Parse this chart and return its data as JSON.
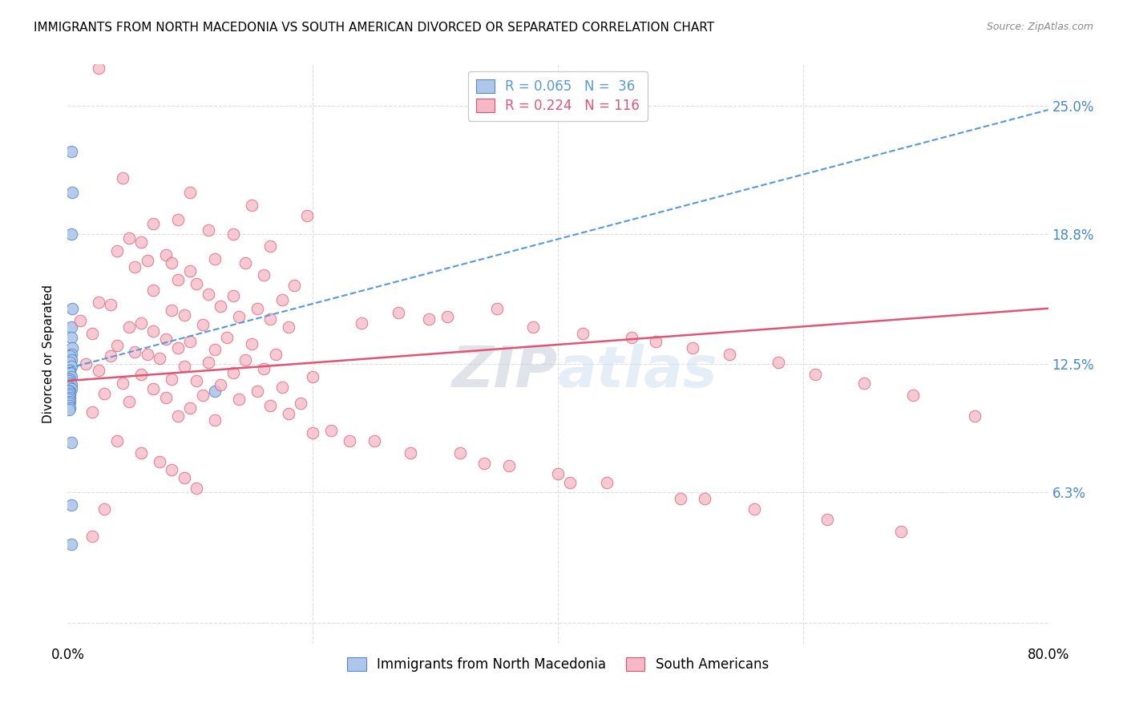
{
  "title": "IMMIGRANTS FROM NORTH MACEDONIA VS SOUTH AMERICAN DIVORCED OR SEPARATED CORRELATION CHART",
  "source": "Source: ZipAtlas.com",
  "ylabel": "Divorced or Separated",
  "legend_label_blue": "Immigrants from North Macedonia",
  "legend_label_pink": "South Americans",
  "blue_color": "#aec6e8",
  "pink_color": "#f5b8c4",
  "blue_edge_color": "#5588cc",
  "pink_edge_color": "#e05070",
  "blue_line_color": "#5599dd",
  "pink_line_color": "#e05575",
  "y_ticks": [
    0.0,
    0.063,
    0.125,
    0.188,
    0.25
  ],
  "y_tick_labels": [
    "",
    "6.3%",
    "12.5%",
    "18.8%",
    "25.0%"
  ],
  "xlim": [
    0.0,
    0.8
  ],
  "ylim": [
    -0.01,
    0.27
  ],
  "blue_scatter_x": [
    0.003,
    0.004,
    0.003,
    0.004,
    0.003,
    0.003,
    0.004,
    0.003,
    0.002,
    0.003,
    0.002,
    0.003,
    0.002,
    0.002,
    0.003,
    0.002,
    0.001,
    0.002,
    0.003,
    0.002,
    0.003,
    0.002,
    0.001,
    0.002,
    0.001,
    0.002,
    0.001,
    0.002,
    0.001,
    0.001,
    0.002,
    0.001,
    0.12,
    0.003,
    0.003,
    0.003
  ],
  "blue_scatter_y": [
    0.228,
    0.208,
    0.188,
    0.152,
    0.143,
    0.138,
    0.133,
    0.13,
    0.129,
    0.127,
    0.126,
    0.124,
    0.122,
    0.121,
    0.119,
    0.118,
    0.117,
    0.116,
    0.115,
    0.114,
    0.113,
    0.112,
    0.112,
    0.111,
    0.11,
    0.109,
    0.108,
    0.107,
    0.106,
    0.105,
    0.104,
    0.103,
    0.112,
    0.087,
    0.057,
    0.038
  ],
  "pink_scatter_x": [
    0.025,
    0.045,
    0.1,
    0.15,
    0.195,
    0.09,
    0.07,
    0.115,
    0.135,
    0.05,
    0.06,
    0.165,
    0.04,
    0.08,
    0.12,
    0.065,
    0.085,
    0.145,
    0.055,
    0.1,
    0.16,
    0.09,
    0.105,
    0.185,
    0.07,
    0.115,
    0.135,
    0.175,
    0.025,
    0.035,
    0.125,
    0.155,
    0.085,
    0.095,
    0.14,
    0.165,
    0.01,
    0.06,
    0.11,
    0.05,
    0.18,
    0.07,
    0.02,
    0.13,
    0.08,
    0.1,
    0.15,
    0.04,
    0.09,
    0.12,
    0.055,
    0.065,
    0.17,
    0.035,
    0.075,
    0.145,
    0.115,
    0.015,
    0.095,
    0.16,
    0.025,
    0.135,
    0.06,
    0.2,
    0.085,
    0.105,
    0.045,
    0.125,
    0.175,
    0.07,
    0.155,
    0.03,
    0.11,
    0.08,
    0.14,
    0.05,
    0.19,
    0.165,
    0.1,
    0.02,
    0.18,
    0.09,
    0.12,
    0.35,
    0.27,
    0.31,
    0.295,
    0.24,
    0.38,
    0.42,
    0.46,
    0.48,
    0.51,
    0.54,
    0.58,
    0.61,
    0.65,
    0.69,
    0.74,
    0.04,
    0.06,
    0.075,
    0.085,
    0.095,
    0.105,
    0.215,
    0.25,
    0.32,
    0.36,
    0.4,
    0.44,
    0.5,
    0.56,
    0.62,
    0.68,
    0.03,
    0.02,
    0.2,
    0.23,
    0.28,
    0.34,
    0.41,
    0.52
  ],
  "pink_scatter_y": [
    0.268,
    0.215,
    0.208,
    0.202,
    0.197,
    0.195,
    0.193,
    0.19,
    0.188,
    0.186,
    0.184,
    0.182,
    0.18,
    0.178,
    0.176,
    0.175,
    0.174,
    0.174,
    0.172,
    0.17,
    0.168,
    0.166,
    0.164,
    0.163,
    0.161,
    0.159,
    0.158,
    0.156,
    0.155,
    0.154,
    0.153,
    0.152,
    0.151,
    0.149,
    0.148,
    0.147,
    0.146,
    0.145,
    0.144,
    0.143,
    0.143,
    0.141,
    0.14,
    0.138,
    0.137,
    0.136,
    0.135,
    0.134,
    0.133,
    0.132,
    0.131,
    0.13,
    0.13,
    0.129,
    0.128,
    0.127,
    0.126,
    0.125,
    0.124,
    0.123,
    0.122,
    0.121,
    0.12,
    0.119,
    0.118,
    0.117,
    0.116,
    0.115,
    0.114,
    0.113,
    0.112,
    0.111,
    0.11,
    0.109,
    0.108,
    0.107,
    0.106,
    0.105,
    0.104,
    0.102,
    0.101,
    0.1,
    0.098,
    0.152,
    0.15,
    0.148,
    0.147,
    0.145,
    0.143,
    0.14,
    0.138,
    0.136,
    0.133,
    0.13,
    0.126,
    0.12,
    0.116,
    0.11,
    0.1,
    0.088,
    0.082,
    0.078,
    0.074,
    0.07,
    0.065,
    0.093,
    0.088,
    0.082,
    0.076,
    0.072,
    0.068,
    0.06,
    0.055,
    0.05,
    0.044,
    0.055,
    0.042,
    0.092,
    0.088,
    0.082,
    0.077,
    0.068,
    0.06
  ],
  "background_color": "#ffffff",
  "grid_color": "#dddddd",
  "watermark": "ZIPatlas",
  "watermark_color": "#d0dff0"
}
